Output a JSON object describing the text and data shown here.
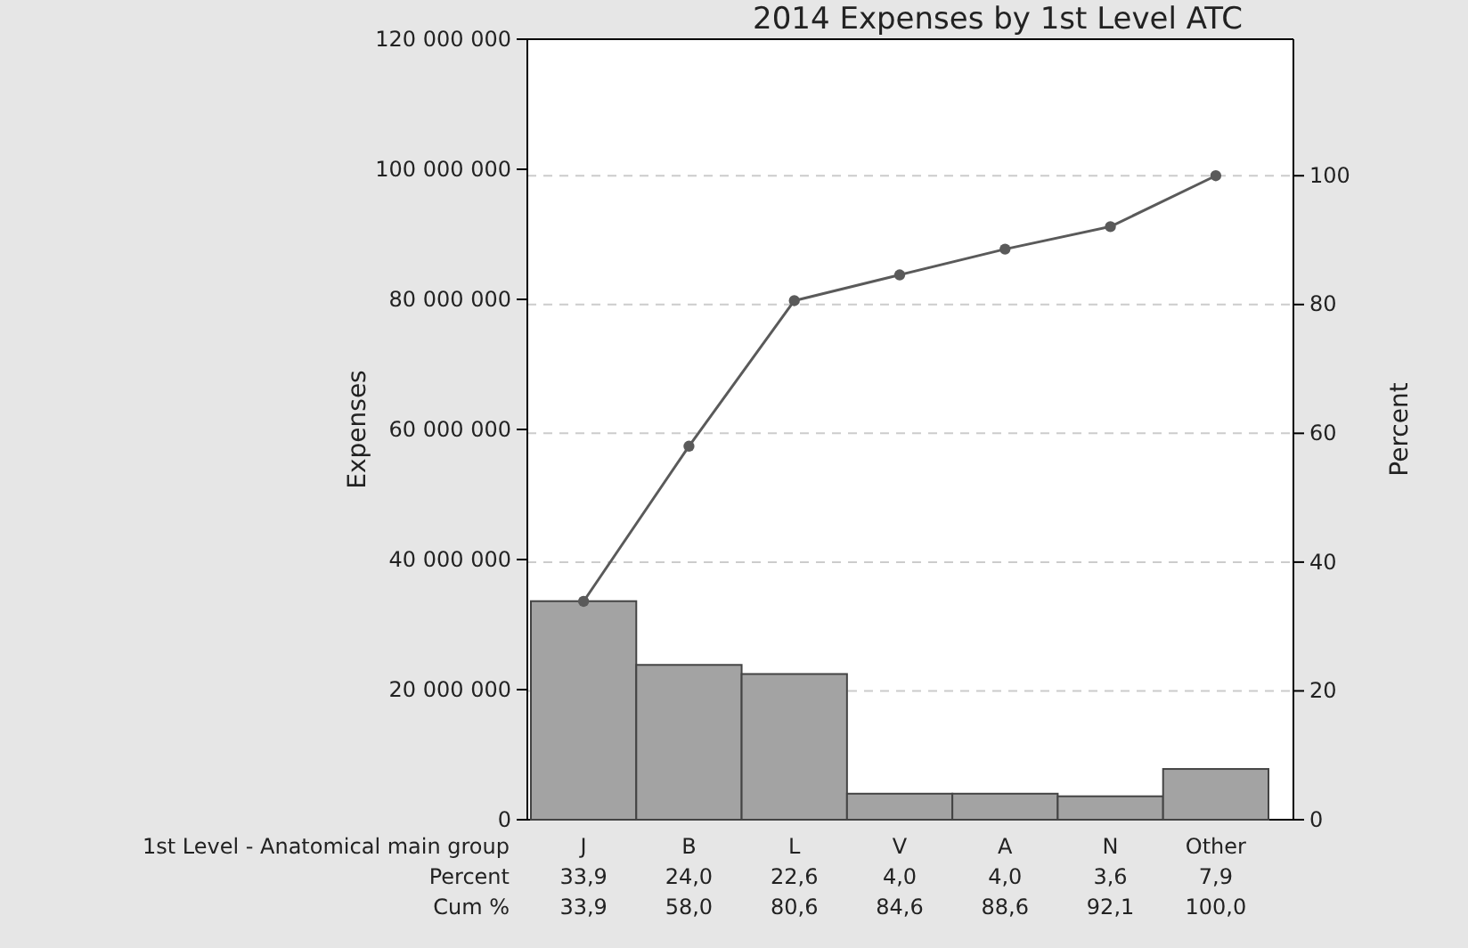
{
  "chart_data": {
    "type": "bar",
    "title": "2014 Expenses by 1st Level ATC",
    "xlabel": "1st  Level - Anatomical main group",
    "ylabel": "Expenses",
    "y2label": "Percent",
    "categories": [
      "J",
      "B",
      "L",
      "V",
      "A",
      "N",
      "Other"
    ],
    "series": [
      {
        "color": "#a3a3a3",
        "values": [
          33600000,
          23800000,
          22400000,
          4000000,
          4000000,
          3600000,
          7800000
        ]
      },
      {
        "type": "line",
        "axis": "y2",
        "color": "#5a5a5a",
        "values": [
          33.9,
          58.0,
          80.6,
          84.6,
          88.6,
          92.1,
          100.0
        ],
        "value_labels": [
          "33,9",
          "58,0",
          "80,6",
          "84,6",
          "88,6",
          "92,1",
          "100,0"
        ]
      }
    ],
    "annotations": [
      "Percent",
      "Cum %",
      "33,9",
      "24,0",
      "22,6",
      "4,0",
      "4,0",
      "3,6",
      "7,9"
    ],
    "ylim": [
      0,
      120000000
    ],
    "yticks": [
      {
        "value": 0,
        "label": "0"
      },
      {
        "value": 20000000,
        "label": "20 000 000"
      },
      {
        "value": 40000000,
        "label": "40 000 000"
      },
      {
        "value": 60000000,
        "label": "60 000 000"
      },
      {
        "value": 80000000,
        "label": "80 000 000"
      },
      {
        "value": 100000000,
        "label": "100 000 000"
      },
      {
        "value": 120000000,
        "label": "120 000 000"
      }
    ],
    "y2lim": [
      0,
      121.2
    ],
    "y2ticks": [
      0,
      20,
      40,
      60,
      80,
      100
    ],
    "grid": "y",
    "marker": "circle",
    "line_style": "solid"
  }
}
